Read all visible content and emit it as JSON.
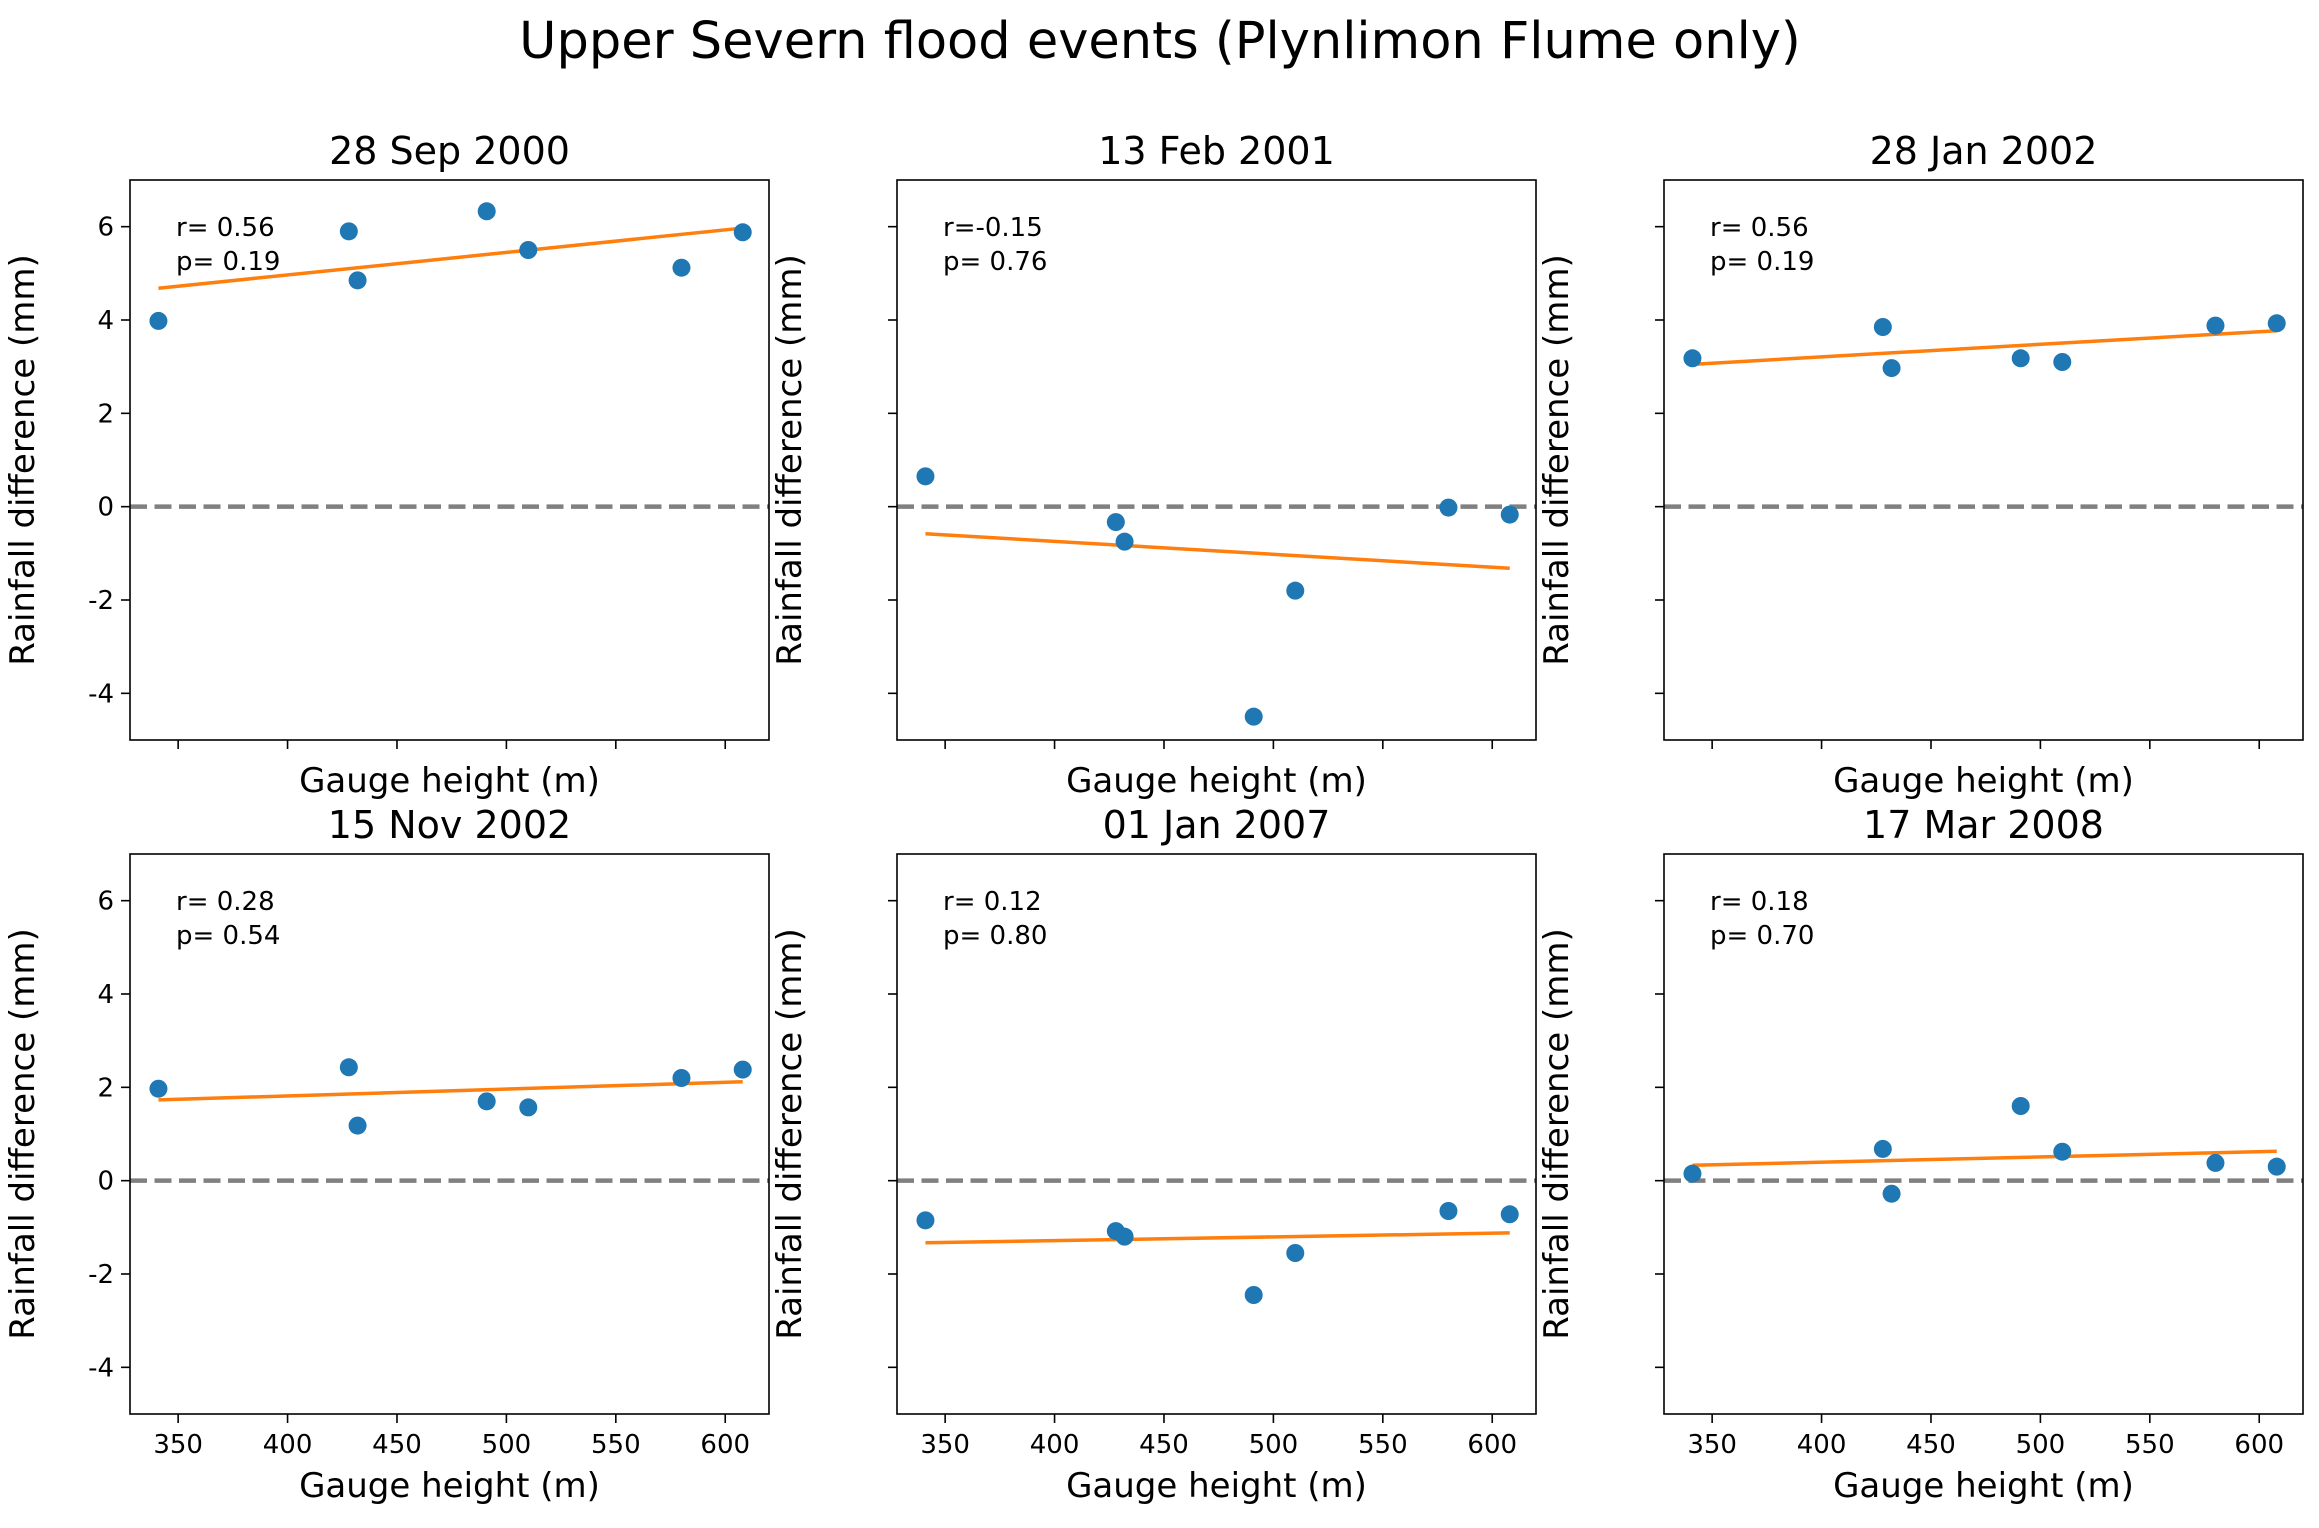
{
  "figure": {
    "suptitle": "Upper Severn flood events (Plynlimon Flume only)"
  },
  "colors": {
    "points": "#1f77b4",
    "fit_line": "#ff7f0e",
    "zero_line": "#808080"
  },
  "chart_data": [
    {
      "type": "scatter",
      "title": "28 Sep 2000",
      "xlabel": "Gauge height (m)",
      "ylabel": "Rainfall difference (mm)",
      "xlim": [
        328,
        620
      ],
      "ylim": [
        -5,
        7
      ],
      "xticks": [
        350,
        400,
        450,
        500,
        550,
        600
      ],
      "yticks": [
        -4,
        -2,
        0,
        2,
        4,
        6
      ],
      "show_xticklabels": false,
      "show_yticklabels": true,
      "x": [
        341,
        428,
        432,
        491,
        510,
        580,
        608
      ],
      "y": [
        3.98,
        5.9,
        4.85,
        6.33,
        5.5,
        5.12,
        5.88
      ],
      "fit": {
        "x": [
          341,
          608
        ],
        "y": [
          4.68,
          5.97
        ]
      },
      "zero_line": 0,
      "annotation": {
        "r": "r= 0.56",
        "p": "p= 0.19"
      }
    },
    {
      "type": "scatter",
      "title": "13 Feb 2001",
      "xlabel": "Gauge height (m)",
      "ylabel": "Rainfall difference (mm)",
      "xlim": [
        328,
        620
      ],
      "ylim": [
        -5,
        7
      ],
      "xticks": [
        350,
        400,
        450,
        500,
        550,
        600
      ],
      "yticks": [
        -4,
        -2,
        0,
        2,
        4,
        6
      ],
      "show_xticklabels": false,
      "show_yticklabels": false,
      "x": [
        341,
        428,
        432,
        491,
        510,
        580,
        608
      ],
      "y": [
        0.65,
        -0.33,
        -0.75,
        -4.5,
        -1.8,
        -0.02,
        -0.17
      ],
      "fit": {
        "x": [
          341,
          608
        ],
        "y": [
          -0.58,
          -1.32
        ]
      },
      "zero_line": 0,
      "annotation": {
        "r": "r=-0.15",
        "p": "p= 0.76"
      }
    },
    {
      "type": "scatter",
      "title": "28 Jan 2002",
      "xlabel": "Gauge height (m)",
      "ylabel": "Rainfall difference (mm)",
      "xlim": [
        328,
        620
      ],
      "ylim": [
        -5,
        7
      ],
      "xticks": [
        350,
        400,
        450,
        500,
        550,
        600
      ],
      "yticks": [
        -4,
        -2,
        0,
        2,
        4,
        6
      ],
      "show_xticklabels": false,
      "show_yticklabels": false,
      "x": [
        341,
        428,
        432,
        491,
        510,
        580,
        608
      ],
      "y": [
        3.18,
        3.85,
        2.97,
        3.18,
        3.1,
        3.88,
        3.93
      ],
      "fit": {
        "x": [
          341,
          608
        ],
        "y": [
          3.05,
          3.77
        ]
      },
      "zero_line": 0,
      "annotation": {
        "r": "r= 0.56",
        "p": "p= 0.19"
      }
    },
    {
      "type": "scatter",
      "title": "15 Nov 2002",
      "xlabel": "Gauge height (m)",
      "ylabel": "Rainfall difference (mm)",
      "xlim": [
        328,
        620
      ],
      "ylim": [
        -5,
        7
      ],
      "xticks": [
        350,
        400,
        450,
        500,
        550,
        600
      ],
      "yticks": [
        -4,
        -2,
        0,
        2,
        4,
        6
      ],
      "show_xticklabels": true,
      "show_yticklabels": true,
      "x": [
        341,
        428,
        432,
        491,
        510,
        580,
        608
      ],
      "y": [
        1.97,
        2.43,
        1.18,
        1.7,
        1.57,
        2.2,
        2.38
      ],
      "fit": {
        "x": [
          341,
          608
        ],
        "y": [
          1.73,
          2.12
        ]
      },
      "zero_line": 0,
      "annotation": {
        "r": "r= 0.28",
        "p": "p= 0.54"
      }
    },
    {
      "type": "scatter",
      "title": "01 Jan 2007",
      "xlabel": "Gauge height (m)",
      "ylabel": "Rainfall difference (mm)",
      "xlim": [
        328,
        620
      ],
      "ylim": [
        -5,
        7
      ],
      "xticks": [
        350,
        400,
        450,
        500,
        550,
        600
      ],
      "yticks": [
        -4,
        -2,
        0,
        2,
        4,
        6
      ],
      "show_xticklabels": true,
      "show_yticklabels": false,
      "x": [
        341,
        428,
        432,
        491,
        510,
        580,
        608
      ],
      "y": [
        -0.85,
        -1.08,
        -1.2,
        -2.45,
        -1.55,
        -0.65,
        -0.72
      ],
      "fit": {
        "x": [
          341,
          608
        ],
        "y": [
          -1.33,
          -1.12
        ]
      },
      "zero_line": 0,
      "annotation": {
        "r": "r= 0.12",
        "p": "p= 0.80"
      }
    },
    {
      "type": "scatter",
      "title": "17 Mar 2008",
      "xlabel": "Gauge height (m)",
      "ylabel": "Rainfall difference (mm)",
      "xlim": [
        328,
        620
      ],
      "ylim": [
        -5,
        7
      ],
      "xticks": [
        350,
        400,
        450,
        500,
        550,
        600
      ],
      "yticks": [
        -4,
        -2,
        0,
        2,
        4,
        6
      ],
      "show_xticklabels": true,
      "show_yticklabels": false,
      "x": [
        341,
        428,
        432,
        491,
        510,
        580,
        608
      ],
      "y": [
        0.15,
        0.68,
        -0.28,
        1.6,
        0.62,
        0.38,
        0.3
      ],
      "fit": {
        "x": [
          341,
          608
        ],
        "y": [
          0.33,
          0.63
        ]
      },
      "zero_line": 0,
      "annotation": {
        "r": "r= 0.18",
        "p": "p= 0.70"
      }
    }
  ]
}
